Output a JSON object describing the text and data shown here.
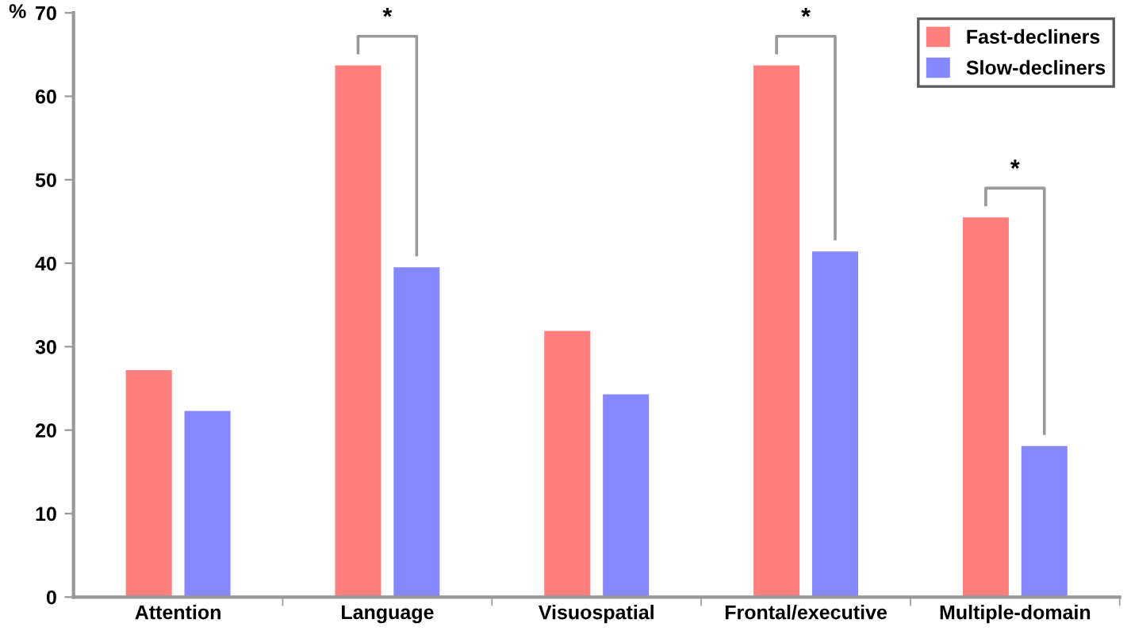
{
  "chart_data": {
    "type": "bar",
    "ylabel": "%",
    "categories": [
      "Attention",
      "Language",
      "Visuospatial",
      "Frontal/executive",
      "Multiple-domain"
    ],
    "series": [
      {
        "name": "Fast-decliners",
        "color": "#ff7f7f",
        "values": [
          27.2,
          63.7,
          31.9,
          63.7,
          45.5
        ]
      },
      {
        "name": "Slow-decliners",
        "color": "#8787ff",
        "values": [
          22.3,
          39.5,
          24.3,
          41.4,
          18.1
        ]
      }
    ],
    "ylim": [
      0,
      70
    ],
    "yticks": [
      0,
      10,
      20,
      30,
      40,
      50,
      60,
      70
    ],
    "grid": false,
    "legend": "top right",
    "annotations": [
      "*",
      "*",
      "*"
    ]
  }
}
